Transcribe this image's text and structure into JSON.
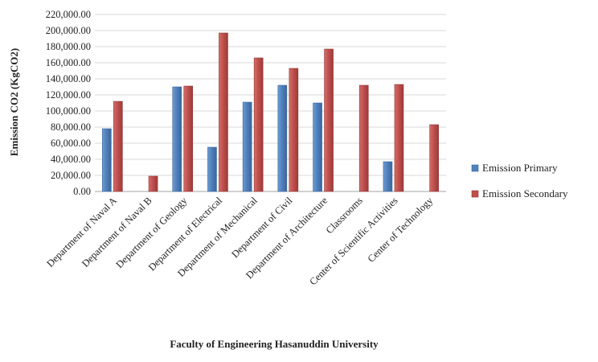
{
  "chart_data": {
    "type": "bar",
    "title": "",
    "xlabel": "Faculty of Engineering Hasanuddin University",
    "ylabel": "Emission CO2 (KgCO2)",
    "ylim": [
      0,
      220000
    ],
    "ytick_step": 20000,
    "ytick_labels": [
      "0.00",
      "20,000.00",
      "40,000.00",
      "60,000.00",
      "80,000.00",
      "100,000.00",
      "120,000.00",
      "140,000.00",
      "160,000.00",
      "180,000.00",
      "200,000.00",
      "220,000.00"
    ],
    "grid": true,
    "legend_position": "right",
    "categories": [
      "Department of Naval A",
      "Department of Naval B",
      "Department of Geology",
      "Department of Electrical",
      "Department of Mechanical",
      "Department of Civil",
      "Department of Architecture",
      "Classrooms",
      "Center of Scientific Activities",
      "Center of Technology"
    ],
    "series": [
      {
        "name": "Emission Primary",
        "color": "#4f81bd",
        "values": [
          78000,
          0,
          130000,
          55000,
          111000,
          132000,
          110000,
          0,
          37000,
          0
        ]
      },
      {
        "name": "Emission Secondary",
        "color": "#c0504d",
        "values": [
          112000,
          19000,
          131000,
          197000,
          166000,
          153000,
          177000,
          132000,
          133000,
          83000
        ]
      }
    ]
  }
}
